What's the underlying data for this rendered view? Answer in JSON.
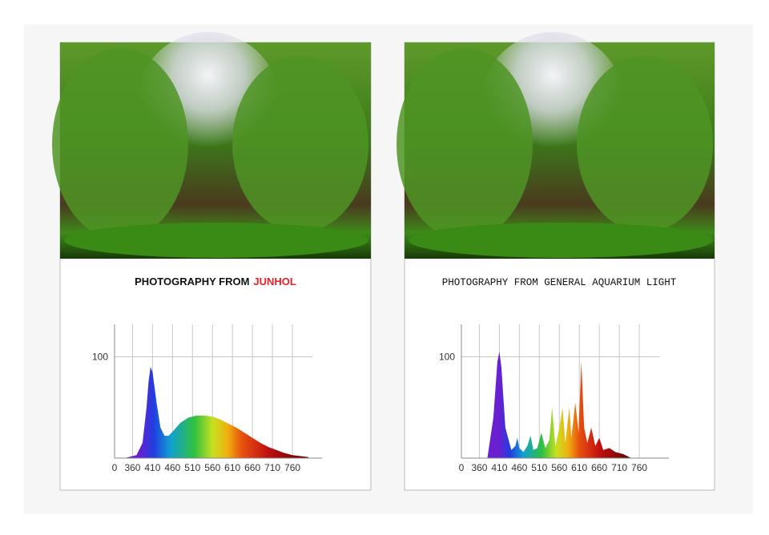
{
  "chart_data": [
    {
      "type": "area",
      "title": "PHOTOGRAPHY FROM",
      "title_highlight": "JUNHOL",
      "title_highlight_color": "#e8202a",
      "xlim": [
        315,
        810
      ],
      "ylim": [
        0,
        132
      ],
      "xticks": [
        360,
        410,
        460,
        510,
        560,
        610,
        660,
        710,
        760
      ],
      "yticks": [
        0,
        100
      ],
      "grid": true,
      "series": [
        {
          "x": [
            340,
            370,
            385,
            395,
            400,
            405,
            410,
            420,
            430,
            440,
            450,
            460,
            480,
            500,
            520,
            540,
            560,
            580,
            600,
            620,
            640,
            660,
            680,
            700,
            720,
            740,
            760,
            780,
            800
          ],
          "values": [
            0,
            3,
            15,
            50,
            75,
            90,
            85,
            55,
            30,
            22,
            22,
            26,
            35,
            40,
            42,
            42,
            41,
            38,
            34,
            30,
            25,
            20,
            15,
            11,
            8,
            5,
            3,
            2,
            1
          ]
        }
      ]
    },
    {
      "type": "area",
      "title": "PHOTOGRAPHY FROM GENERAL AQUARIUM LIGHT",
      "xlim": [
        315,
        810
      ],
      "ylim": [
        0,
        132
      ],
      "xticks": [
        360,
        410,
        460,
        510,
        560,
        610,
        660,
        710,
        760
      ],
      "yticks": [
        0,
        100
      ],
      "grid": true,
      "series": [
        {
          "x": [
            380,
            395,
            405,
            410,
            415,
            425,
            440,
            450,
            455,
            460,
            470,
            480,
            488,
            495,
            505,
            515,
            525,
            535,
            542,
            550,
            560,
            568,
            575,
            585,
            590,
            600,
            608,
            615,
            622,
            630,
            640,
            650,
            660,
            670,
            685,
            700,
            720,
            740
          ],
          "values": [
            0,
            40,
            95,
            105,
            90,
            30,
            8,
            12,
            20,
            10,
            6,
            12,
            22,
            8,
            10,
            25,
            10,
            18,
            50,
            12,
            30,
            50,
            15,
            50,
            20,
            55,
            25,
            95,
            30,
            15,
            30,
            12,
            20,
            8,
            10,
            6,
            4,
            0
          ]
        }
      ]
    }
  ]
}
